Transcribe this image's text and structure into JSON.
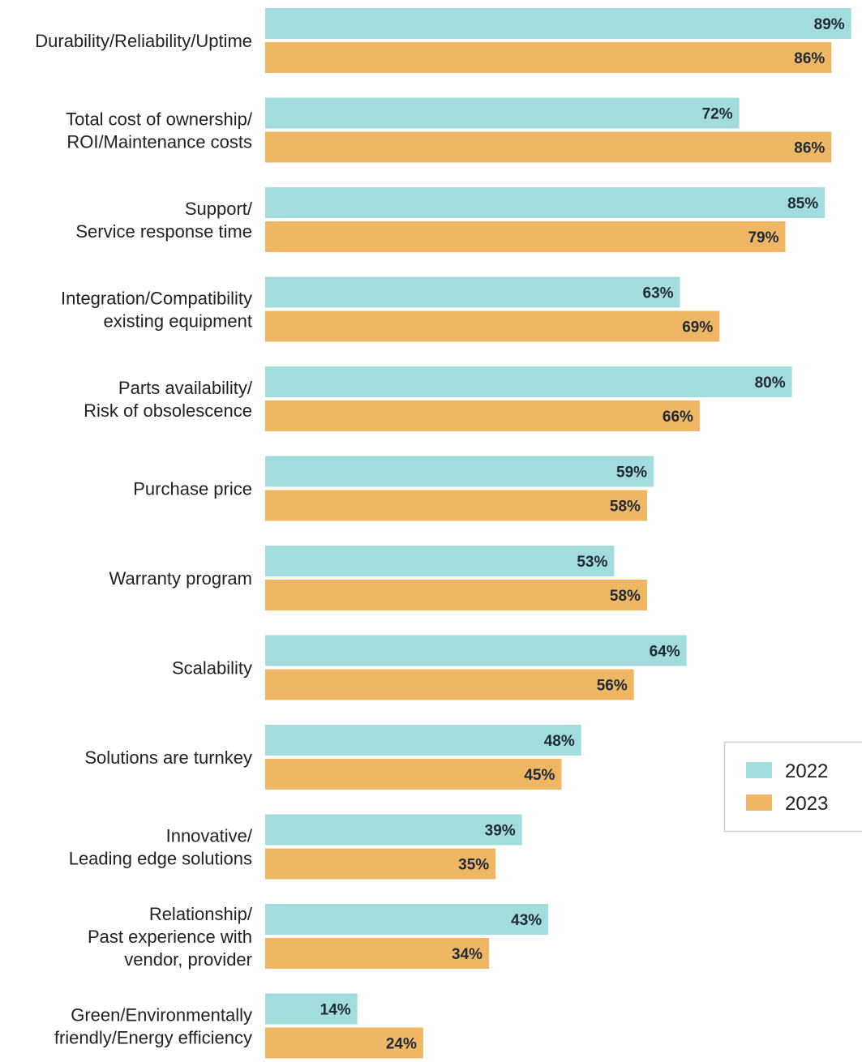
{
  "chart_data": {
    "type": "bar",
    "orientation": "horizontal",
    "categories": [
      [
        "Durability/Reliability/Uptime"
      ],
      [
        "Total cost of ownership/",
        "ROI/Maintenance costs"
      ],
      [
        "Support/",
        "Service response time"
      ],
      [
        "Integration/Compatibility",
        "existing equipment"
      ],
      [
        "Parts availability/",
        "Risk of obsolescence"
      ],
      [
        "Purchase price"
      ],
      [
        "Warranty program"
      ],
      [
        "Scalability"
      ],
      [
        "Solutions are turnkey"
      ],
      [
        "Innovative/",
        "Leading edge solutions"
      ],
      [
        "Relationship/",
        "Past experience with",
        "vendor, provider"
      ],
      [
        "Green/Environmentally",
        "friendly/Energy efficiency"
      ]
    ],
    "series": [
      {
        "name": "2022",
        "color": "#a3dcdc",
        "values": [
          89,
          72,
          85,
          63,
          80,
          59,
          53,
          64,
          48,
          39,
          43,
          14
        ]
      },
      {
        "name": "2023",
        "color": "#efb764",
        "values": [
          86,
          86,
          79,
          69,
          66,
          58,
          58,
          56,
          45,
          35,
          34,
          24
        ]
      }
    ],
    "value_suffix": "%",
    "xlim": [
      0,
      89
    ],
    "grid": false,
    "legend_placement": "right"
  }
}
